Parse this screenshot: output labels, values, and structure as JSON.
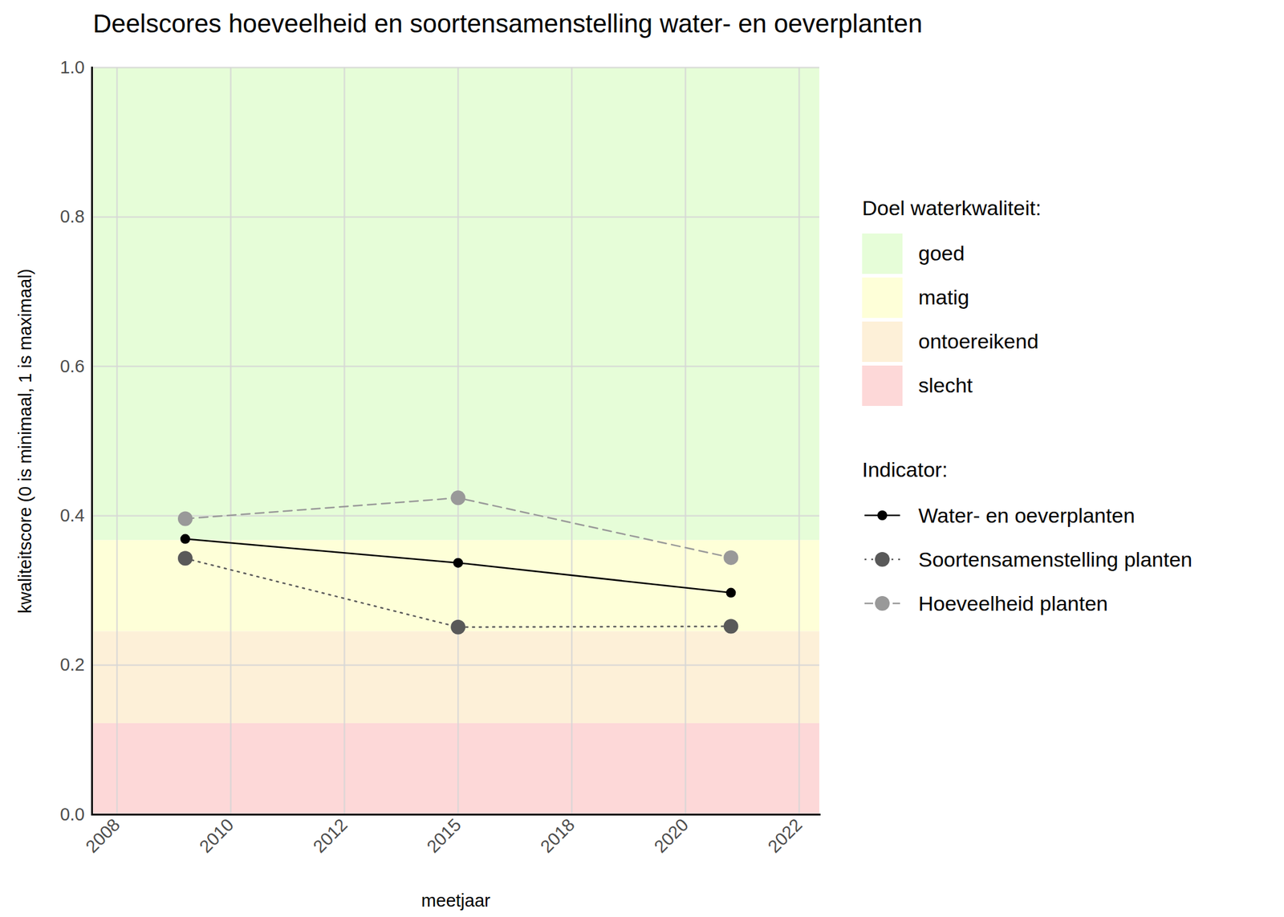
{
  "chart_data": {
    "type": "line",
    "title": "Deelscores hoeveelheid en soortensamenstelling water- en oeverplanten",
    "x_label": "meetjaar",
    "y_label": "kwaliteitscore (0 is minimaal, 1 is maximaal)",
    "x": [
      2009,
      2015,
      2021
    ],
    "series": [
      {
        "name": "Water- en oeverplanten",
        "color": "#000000",
        "line_style": "solid",
        "marker": "circle",
        "values": [
          0.369,
          0.337,
          0.297
        ]
      },
      {
        "name": "Soortensamenstelling planten",
        "color": "#595959",
        "line_style": "dotted",
        "marker": "circle",
        "values": [
          0.343,
          0.251,
          0.252
        ]
      },
      {
        "name": "Hoeveelheid planten",
        "color": "#999999",
        "line_style": "dashed",
        "marker": "circle",
        "values": [
          0.396,
          0.424,
          0.344
        ]
      }
    ],
    "legend_title": "Indicator:",
    "bands_title": "Doel waterkwaliteit:",
    "bands": [
      {
        "name": "goed",
        "from": 0.367,
        "to": 1.0,
        "color": "#e6fdd8"
      },
      {
        "name": "matig",
        "from": 0.245,
        "to": 0.367,
        "color": "#feffd8"
      },
      {
        "name": "ontoereikend",
        "from": 0.122,
        "to": 0.245,
        "color": "#fdf0d8"
      },
      {
        "name": "slecht",
        "from": 0.0,
        "to": 0.122,
        "color": "#fdd8d8"
      }
    ],
    "xlim": [
      2006.95,
      2022.95
    ],
    "xticks": [
      {
        "value": 2007.5,
        "label": "2008"
      },
      {
        "value": 2010,
        "label": "2010"
      },
      {
        "value": 2012.5,
        "label": "2012"
      },
      {
        "value": 2015,
        "label": "2015"
      },
      {
        "value": 2017.5,
        "label": "2018"
      },
      {
        "value": 2020,
        "label": "2020"
      },
      {
        "value": 2022.5,
        "label": "2022"
      }
    ],
    "ylim": [
      0,
      1
    ],
    "yticks": [
      {
        "value": 0,
        "label": "0.0"
      },
      0.2,
      0.4,
      0.6,
      0.8,
      {
        "value": 1,
        "label": "1.0"
      }
    ],
    "grid": true,
    "legend": "right"
  }
}
